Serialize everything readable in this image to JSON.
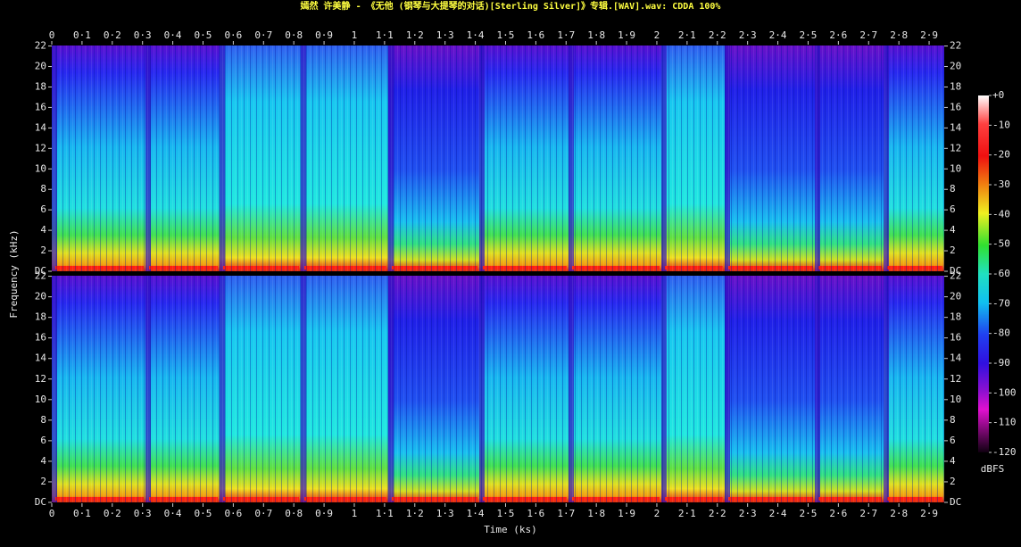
{
  "chart_data": {
    "type": "spectrogram",
    "title": "嫣然 许美静 - 《无他 (钢琴与大提琴的对话)[Sterling Silver]》专辑.[WAV].wav: CDDA 100%",
    "x_label": "Time (ks)",
    "y_label": "Frequency (kHz)",
    "xlim": [
      0,
      2.95
    ],
    "xticks": [
      0,
      {
        "value": 0.1,
        "label": "0·1"
      },
      {
        "value": 0.2,
        "label": "0·2"
      },
      {
        "value": 0.3,
        "label": "0·3"
      },
      {
        "value": 0.4,
        "label": "0·4"
      },
      {
        "value": 0.5,
        "label": "0·5"
      },
      {
        "value": 0.6,
        "label": "0·6"
      },
      {
        "value": 0.7,
        "label": "0·7"
      },
      {
        "value": 0.8,
        "label": "0·8"
      },
      {
        "value": 0.9,
        "label": "0·9"
      },
      1,
      {
        "value": 1.1,
        "label": "1·1"
      },
      {
        "value": 1.2,
        "label": "1·2"
      },
      {
        "value": 1.3,
        "label": "1·3"
      },
      {
        "value": 1.4,
        "label": "1·4"
      },
      {
        "value": 1.5,
        "label": "1·5"
      },
      {
        "value": 1.6,
        "label": "1·6"
      },
      {
        "value": 1.7,
        "label": "1·7"
      },
      {
        "value": 1.8,
        "label": "1·8"
      },
      {
        "value": 1.9,
        "label": "1·9"
      },
      2,
      {
        "value": 2.1,
        "label": "2·1"
      },
      {
        "value": 2.2,
        "label": "2·2"
      },
      {
        "value": 2.3,
        "label": "2·3"
      },
      {
        "value": 2.4,
        "label": "2·4"
      },
      {
        "value": 2.5,
        "label": "2·5"
      },
      {
        "value": 2.6,
        "label": "2·6"
      },
      {
        "value": 2.7,
        "label": "2·7"
      },
      {
        "value": 2.8,
        "label": "2·8"
      },
      {
        "value": 2.9,
        "label": "2·9"
      }
    ],
    "ylim": [
      0,
      22.05
    ],
    "yticks": [
      {
        "value": 0,
        "label": "DC"
      },
      2,
      4,
      6,
      8,
      10,
      12,
      14,
      16,
      18,
      20,
      22
    ],
    "colorbar_label": "dBFS",
    "clim": [
      -120,
      0
    ],
    "cticks": [
      {
        "value": 0,
        "label": "+0"
      },
      -10,
      -20,
      -30,
      -40,
      -50,
      -60,
      -70,
      -80,
      -90,
      -100,
      -110,
      -120
    ]
  }
}
